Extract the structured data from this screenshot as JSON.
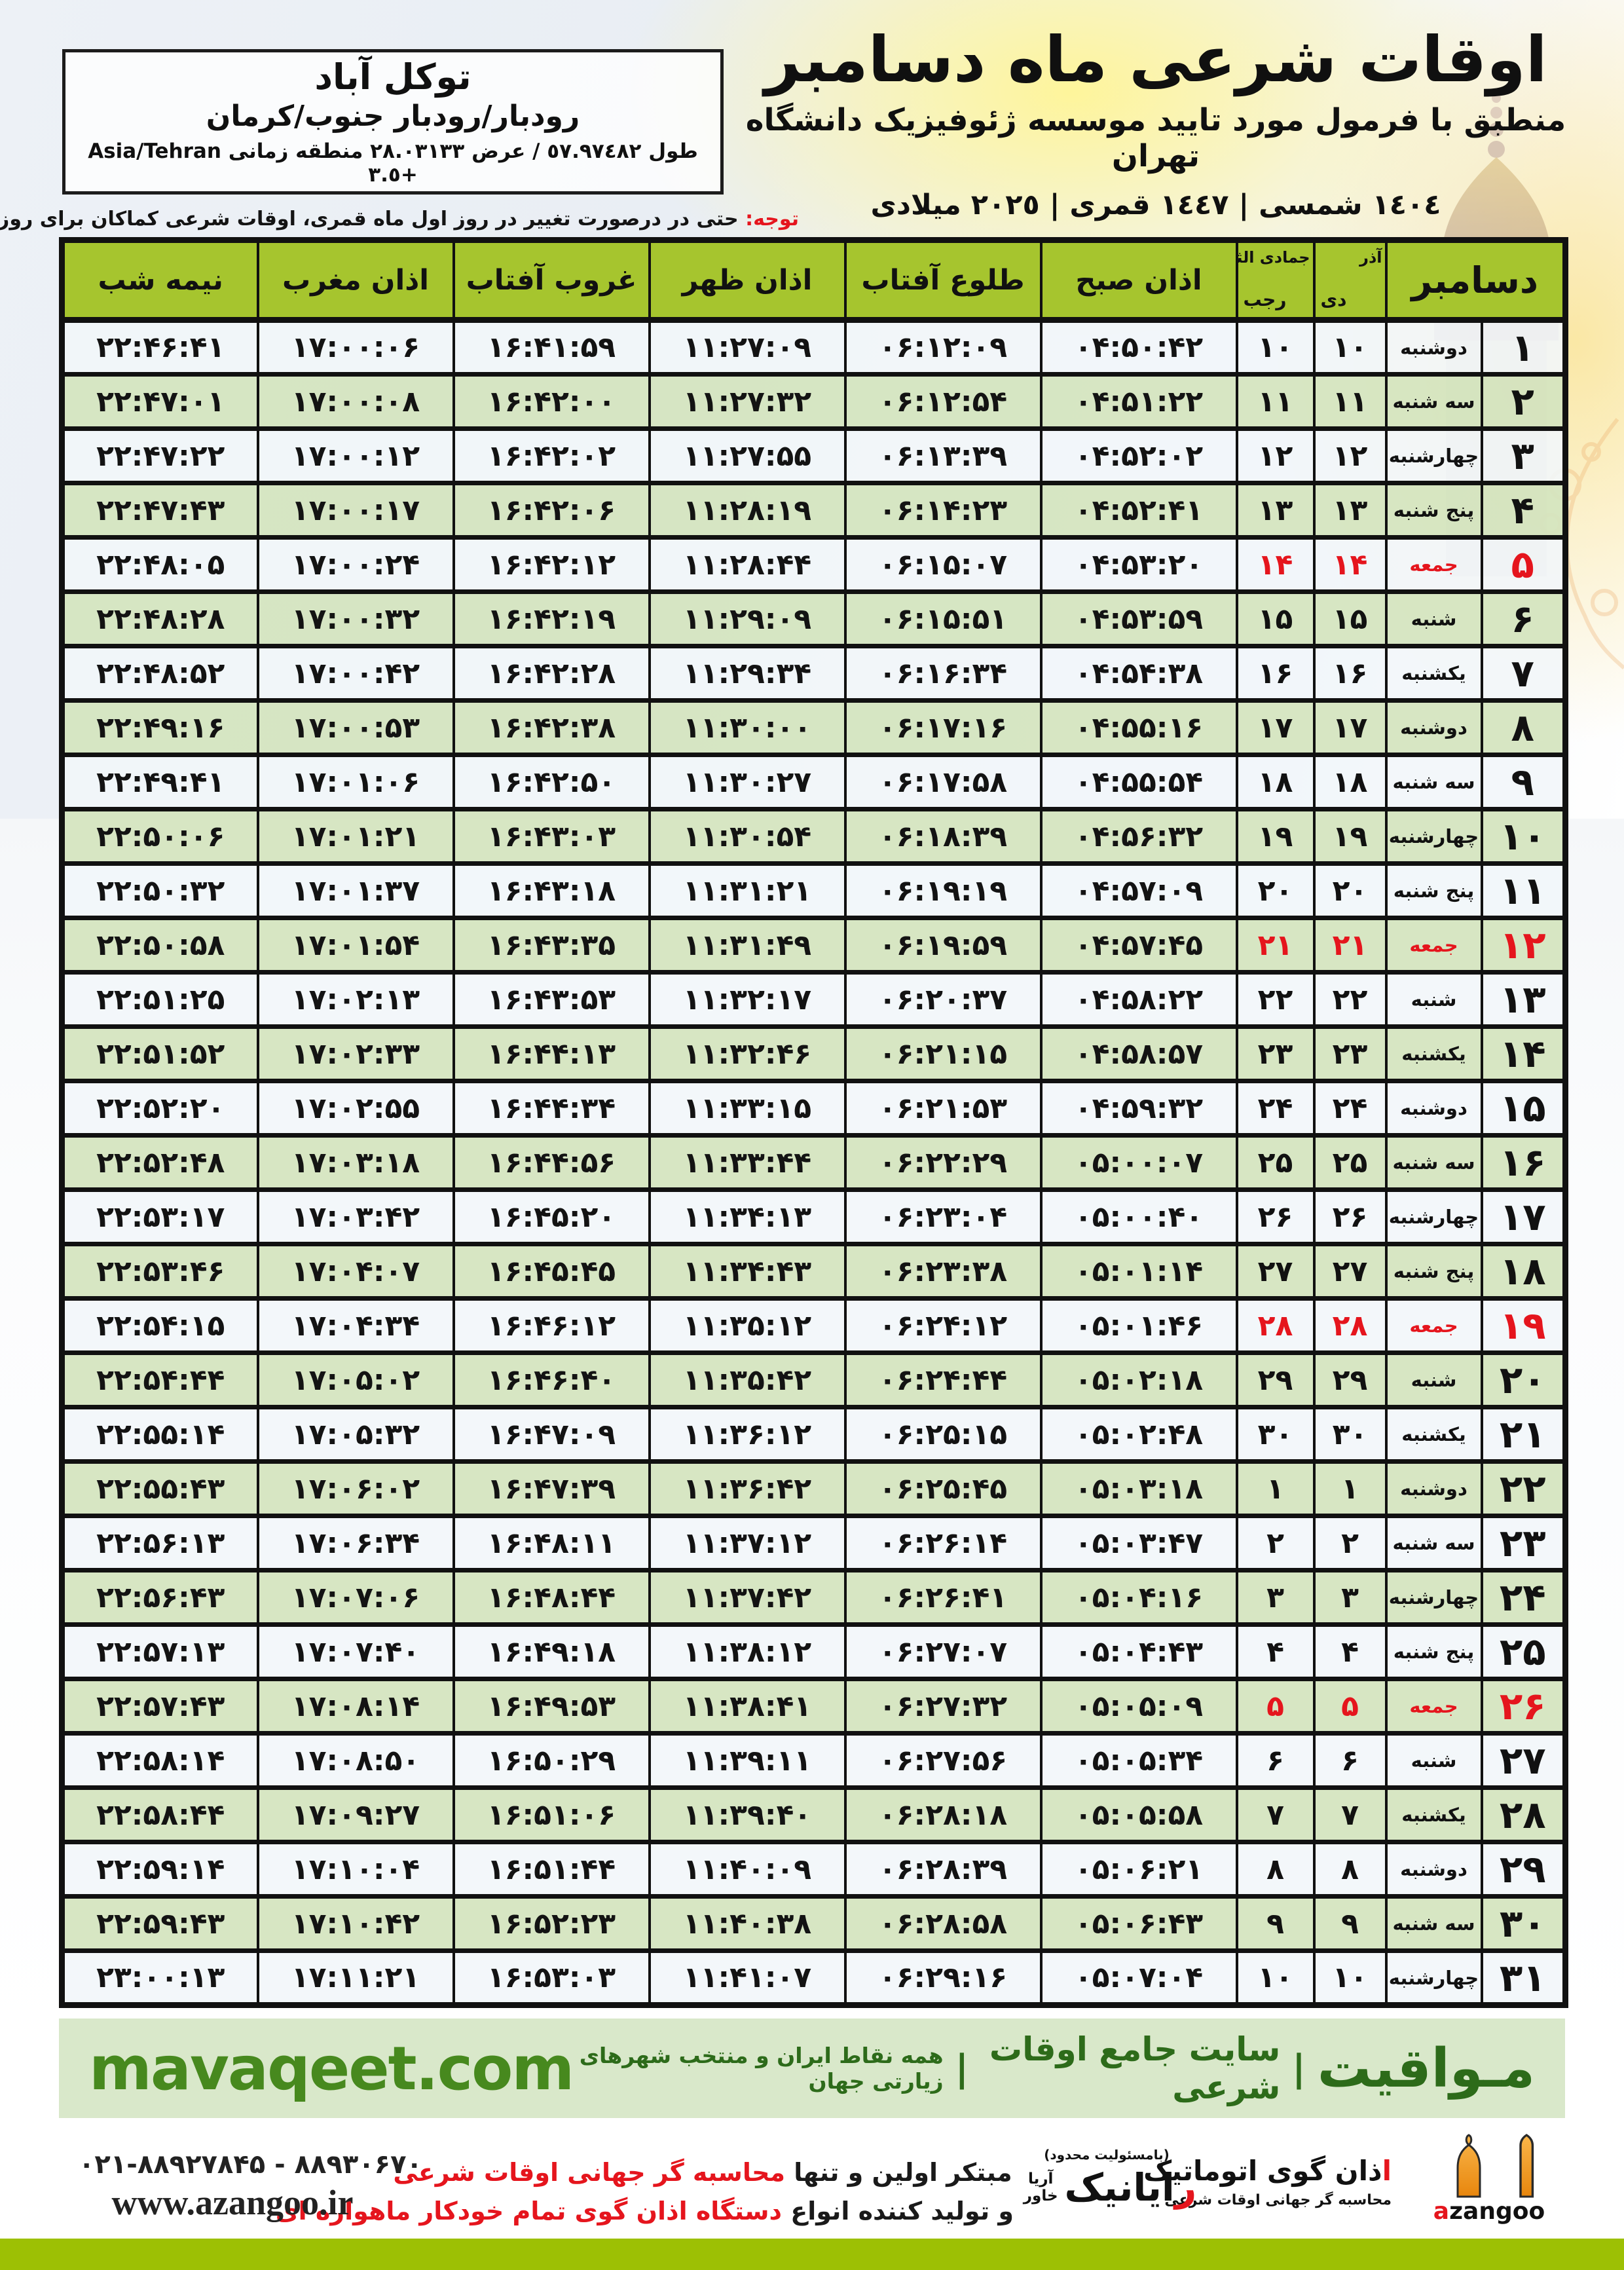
{
  "header": {
    "title": "اوقات شرعی ماه دسامبر",
    "subtitle": "منطبق با فرمول مورد تایید موسسه ژئوفیزیک دانشگاه تهران",
    "years": "١٤٠٤ شمسی | ١٤٤٧ قمری | ٢٠٢٥ میلادی"
  },
  "location_box": {
    "city": "توکل آباد",
    "region": "رودبار/رودبار جنوب/کرمان",
    "coords": "طول ٥٧.٩٧٤٨٢ / عرض ٢٨.٠٣١٣٣ منطقه زمانی Asia/Tehran +٣.٥"
  },
  "notice": {
    "label": "توجه:",
    "text": " حتی در درصورت تغییر در روز اول ماه قمری، اوقات شرعی کماکان برای روزهای شمسی و میلادی معتبر است."
  },
  "table": {
    "headers": {
      "december": "دسامبر",
      "persian_month_top": "آذر",
      "persian_month_bottom": "دی",
      "lunar_month_top": "جمادی الثانی",
      "lunar_month_bottom": "رجب",
      "azan_sobh": "اذان صبح",
      "tolu_aftab": "طلوع آفتاب",
      "azan_zohr": "اذان ظهر",
      "ghorub_aftab": "غروب آفتاب",
      "azan_maghreb": "اذان مغرب",
      "nime_shab": "نیمه شب"
    },
    "rows": [
      {
        "d": "۱",
        "w": "دوشنبه",
        "p": "۱۰",
        "q": "۱۰",
        "sobh": "۰۴:۵۰:۴۲",
        "tolu": "۰۶:۱۲:۰۹",
        "zohr": "۱۱:۲۷:۰۹",
        "ghorub": "۱۶:۴۱:۵۹",
        "maghreb": "۱۷:۰۰:۰۶",
        "nime": "۲۲:۴۶:۴۱",
        "f": false
      },
      {
        "d": "۲",
        "w": "سه شنبه",
        "p": "۱۱",
        "q": "۱۱",
        "sobh": "۰۴:۵۱:۲۲",
        "tolu": "۰۶:۱۲:۵۴",
        "zohr": "۱۱:۲۷:۳۲",
        "ghorub": "۱۶:۴۲:۰۰",
        "maghreb": "۱۷:۰۰:۰۸",
        "nime": "۲۲:۴۷:۰۱",
        "f": false
      },
      {
        "d": "۳",
        "w": "چهارشنبه",
        "p": "۱۲",
        "q": "۱۲",
        "sobh": "۰۴:۵۲:۰۲",
        "tolu": "۰۶:۱۳:۳۹",
        "zohr": "۱۱:۲۷:۵۵",
        "ghorub": "۱۶:۴۲:۰۲",
        "maghreb": "۱۷:۰۰:۱۲",
        "nime": "۲۲:۴۷:۲۲",
        "f": false
      },
      {
        "d": "۴",
        "w": "پنج شنبه",
        "p": "۱۳",
        "q": "۱۳",
        "sobh": "۰۴:۵۲:۴۱",
        "tolu": "۰۶:۱۴:۲۳",
        "zohr": "۱۱:۲۸:۱۹",
        "ghorub": "۱۶:۴۲:۰۶",
        "maghreb": "۱۷:۰۰:۱۷",
        "nime": "۲۲:۴۷:۴۳",
        "f": false
      },
      {
        "d": "۵",
        "w": "جمعه",
        "p": "۱۴",
        "q": "۱۴",
        "sobh": "۰۴:۵۳:۲۰",
        "tolu": "۰۶:۱۵:۰۷",
        "zohr": "۱۱:۲۸:۴۴",
        "ghorub": "۱۶:۴۲:۱۲",
        "maghreb": "۱۷:۰۰:۲۴",
        "nime": "۲۲:۴۸:۰۵",
        "f": true
      },
      {
        "d": "۶",
        "w": "شنبه",
        "p": "۱۵",
        "q": "۱۵",
        "sobh": "۰۴:۵۳:۵۹",
        "tolu": "۰۶:۱۵:۵۱",
        "zohr": "۱۱:۲۹:۰۹",
        "ghorub": "۱۶:۴۲:۱۹",
        "maghreb": "۱۷:۰۰:۳۲",
        "nime": "۲۲:۴۸:۲۸",
        "f": false
      },
      {
        "d": "۷",
        "w": "یکشنبه",
        "p": "۱۶",
        "q": "۱۶",
        "sobh": "۰۴:۵۴:۳۸",
        "tolu": "۰۶:۱۶:۳۴",
        "zohr": "۱۱:۲۹:۳۴",
        "ghorub": "۱۶:۴۲:۲۸",
        "maghreb": "۱۷:۰۰:۴۲",
        "nime": "۲۲:۴۸:۵۲",
        "f": false
      },
      {
        "d": "۸",
        "w": "دوشنبه",
        "p": "۱۷",
        "q": "۱۷",
        "sobh": "۰۴:۵۵:۱۶",
        "tolu": "۰۶:۱۷:۱۶",
        "zohr": "۱۱:۳۰:۰۰",
        "ghorub": "۱۶:۴۲:۳۸",
        "maghreb": "۱۷:۰۰:۵۳",
        "nime": "۲۲:۴۹:۱۶",
        "f": false
      },
      {
        "d": "۹",
        "w": "سه شنبه",
        "p": "۱۸",
        "q": "۱۸",
        "sobh": "۰۴:۵۵:۵۴",
        "tolu": "۰۶:۱۷:۵۸",
        "zohr": "۱۱:۳۰:۲۷",
        "ghorub": "۱۶:۴۲:۵۰",
        "maghreb": "۱۷:۰۱:۰۶",
        "nime": "۲۲:۴۹:۴۱",
        "f": false
      },
      {
        "d": "۱۰",
        "w": "چهارشنبه",
        "p": "۱۹",
        "q": "۱۹",
        "sobh": "۰۴:۵۶:۳۲",
        "tolu": "۰۶:۱۸:۳۹",
        "zohr": "۱۱:۳۰:۵۴",
        "ghorub": "۱۶:۴۳:۰۳",
        "maghreb": "۱۷:۰۱:۲۱",
        "nime": "۲۲:۵۰:۰۶",
        "f": false
      },
      {
        "d": "۱۱",
        "w": "پنج شنبه",
        "p": "۲۰",
        "q": "۲۰",
        "sobh": "۰۴:۵۷:۰۹",
        "tolu": "۰۶:۱۹:۱۹",
        "zohr": "۱۱:۳۱:۲۱",
        "ghorub": "۱۶:۴۳:۱۸",
        "maghreb": "۱۷:۰۱:۳۷",
        "nime": "۲۲:۵۰:۳۲",
        "f": false
      },
      {
        "d": "۱۲",
        "w": "جمعه",
        "p": "۲۱",
        "q": "۲۱",
        "sobh": "۰۴:۵۷:۴۵",
        "tolu": "۰۶:۱۹:۵۹",
        "zohr": "۱۱:۳۱:۴۹",
        "ghorub": "۱۶:۴۳:۳۵",
        "maghreb": "۱۷:۰۱:۵۴",
        "nime": "۲۲:۵۰:۵۸",
        "f": true
      },
      {
        "d": "۱۳",
        "w": "شنبه",
        "p": "۲۲",
        "q": "۲۲",
        "sobh": "۰۴:۵۸:۲۲",
        "tolu": "۰۶:۲۰:۳۷",
        "zohr": "۱۱:۳۲:۱۷",
        "ghorub": "۱۶:۴۳:۵۳",
        "maghreb": "۱۷:۰۲:۱۳",
        "nime": "۲۲:۵۱:۲۵",
        "f": false
      },
      {
        "d": "۱۴",
        "w": "یکشنبه",
        "p": "۲۳",
        "q": "۲۳",
        "sobh": "۰۴:۵۸:۵۷",
        "tolu": "۰۶:۲۱:۱۵",
        "zohr": "۱۱:۳۲:۴۶",
        "ghorub": "۱۶:۴۴:۱۳",
        "maghreb": "۱۷:۰۲:۳۳",
        "nime": "۲۲:۵۱:۵۲",
        "f": false
      },
      {
        "d": "۱۵",
        "w": "دوشنبه",
        "p": "۲۴",
        "q": "۲۴",
        "sobh": "۰۴:۵۹:۳۲",
        "tolu": "۰۶:۲۱:۵۳",
        "zohr": "۱۱:۳۳:۱۵",
        "ghorub": "۱۶:۴۴:۳۴",
        "maghreb": "۱۷:۰۲:۵۵",
        "nime": "۲۲:۵۲:۲۰",
        "f": false
      },
      {
        "d": "۱۶",
        "w": "سه شنبه",
        "p": "۲۵",
        "q": "۲۵",
        "sobh": "۰۵:۰۰:۰۷",
        "tolu": "۰۶:۲۲:۲۹",
        "zohr": "۱۱:۳۳:۴۴",
        "ghorub": "۱۶:۴۴:۵۶",
        "maghreb": "۱۷:۰۳:۱۸",
        "nime": "۲۲:۵۲:۴۸",
        "f": false
      },
      {
        "d": "۱۷",
        "w": "چهارشنبه",
        "p": "۲۶",
        "q": "۲۶",
        "sobh": "۰۵:۰۰:۴۰",
        "tolu": "۰۶:۲۳:۰۴",
        "zohr": "۱۱:۳۴:۱۳",
        "ghorub": "۱۶:۴۵:۲۰",
        "maghreb": "۱۷:۰۳:۴۲",
        "nime": "۲۲:۵۳:۱۷",
        "f": false
      },
      {
        "d": "۱۸",
        "w": "پنج شنبه",
        "p": "۲۷",
        "q": "۲۷",
        "sobh": "۰۵:۰۱:۱۴",
        "tolu": "۰۶:۲۳:۳۸",
        "zohr": "۱۱:۳۴:۴۳",
        "ghorub": "۱۶:۴۵:۴۵",
        "maghreb": "۱۷:۰۴:۰۷",
        "nime": "۲۲:۵۳:۴۶",
        "f": false
      },
      {
        "d": "۱۹",
        "w": "جمعه",
        "p": "۲۸",
        "q": "۲۸",
        "sobh": "۰۵:۰۱:۴۶",
        "tolu": "۰۶:۲۴:۱۲",
        "zohr": "۱۱:۳۵:۱۲",
        "ghorub": "۱۶:۴۶:۱۲",
        "maghreb": "۱۷:۰۴:۳۴",
        "nime": "۲۲:۵۴:۱۵",
        "f": true
      },
      {
        "d": "۲۰",
        "w": "شنبه",
        "p": "۲۹",
        "q": "۲۹",
        "sobh": "۰۵:۰۲:۱۸",
        "tolu": "۰۶:۲۴:۴۴",
        "zohr": "۱۱:۳۵:۴۲",
        "ghorub": "۱۶:۴۶:۴۰",
        "maghreb": "۱۷:۰۵:۰۲",
        "nime": "۲۲:۵۴:۴۴",
        "f": false
      },
      {
        "d": "۲۱",
        "w": "یکشنبه",
        "p": "۳۰",
        "q": "۳۰",
        "sobh": "۰۵:۰۲:۴۸",
        "tolu": "۰۶:۲۵:۱۵",
        "zohr": "۱۱:۳۶:۱۲",
        "ghorub": "۱۶:۴۷:۰۹",
        "maghreb": "۱۷:۰۵:۳۲",
        "nime": "۲۲:۵۵:۱۴",
        "f": false
      },
      {
        "d": "۲۲",
        "w": "دوشنبه",
        "p": "۱",
        "q": "۱",
        "sobh": "۰۵:۰۳:۱۸",
        "tolu": "۰۶:۲۵:۴۵",
        "zohr": "۱۱:۳۶:۴۲",
        "ghorub": "۱۶:۴۷:۳۹",
        "maghreb": "۱۷:۰۶:۰۲",
        "nime": "۲۲:۵۵:۴۳",
        "f": false
      },
      {
        "d": "۲۳",
        "w": "سه شنبه",
        "p": "۲",
        "q": "۲",
        "sobh": "۰۵:۰۳:۴۷",
        "tolu": "۰۶:۲۶:۱۴",
        "zohr": "۱۱:۳۷:۱۲",
        "ghorub": "۱۶:۴۸:۱۱",
        "maghreb": "۱۷:۰۶:۳۴",
        "nime": "۲۲:۵۶:۱۳",
        "f": false
      },
      {
        "d": "۲۴",
        "w": "چهارشنبه",
        "p": "۳",
        "q": "۳",
        "sobh": "۰۵:۰۴:۱۶",
        "tolu": "۰۶:۲۶:۴۱",
        "zohr": "۱۱:۳۷:۴۲",
        "ghorub": "۱۶:۴۸:۴۴",
        "maghreb": "۱۷:۰۷:۰۶",
        "nime": "۲۲:۵۶:۴۳",
        "f": false
      },
      {
        "d": "۲۵",
        "w": "پنج شنبه",
        "p": "۴",
        "q": "۴",
        "sobh": "۰۵:۰۴:۴۳",
        "tolu": "۰۶:۲۷:۰۷",
        "zohr": "۱۱:۳۸:۱۲",
        "ghorub": "۱۶:۴۹:۱۸",
        "maghreb": "۱۷:۰۷:۴۰",
        "nime": "۲۲:۵۷:۱۳",
        "f": false
      },
      {
        "d": "۲۶",
        "w": "جمعه",
        "p": "۵",
        "q": "۵",
        "sobh": "۰۵:۰۵:۰۹",
        "tolu": "۰۶:۲۷:۳۲",
        "zohr": "۱۱:۳۸:۴۱",
        "ghorub": "۱۶:۴۹:۵۳",
        "maghreb": "۱۷:۰۸:۱۴",
        "nime": "۲۲:۵۷:۴۳",
        "f": true
      },
      {
        "d": "۲۷",
        "w": "شنبه",
        "p": "۶",
        "q": "۶",
        "sobh": "۰۵:۰۵:۳۴",
        "tolu": "۰۶:۲۷:۵۶",
        "zohr": "۱۱:۳۹:۱۱",
        "ghorub": "۱۶:۵۰:۲۹",
        "maghreb": "۱۷:۰۸:۵۰",
        "nime": "۲۲:۵۸:۱۴",
        "f": false
      },
      {
        "d": "۲۸",
        "w": "یکشنبه",
        "p": "۷",
        "q": "۷",
        "sobh": "۰۵:۰۵:۵۸",
        "tolu": "۰۶:۲۸:۱۸",
        "zohr": "۱۱:۳۹:۴۰",
        "ghorub": "۱۶:۵۱:۰۶",
        "maghreb": "۱۷:۰۹:۲۷",
        "nime": "۲۲:۵۸:۴۴",
        "f": false
      },
      {
        "d": "۲۹",
        "w": "دوشنبه",
        "p": "۸",
        "q": "۸",
        "sobh": "۰۵:۰۶:۲۱",
        "tolu": "۰۶:۲۸:۳۹",
        "zohr": "۱۱:۴۰:۰۹",
        "ghorub": "۱۶:۵۱:۴۴",
        "maghreb": "۱۷:۱۰:۰۴",
        "nime": "۲۲:۵۹:۱۴",
        "f": false
      },
      {
        "d": "۳۰",
        "w": "سه شنبه",
        "p": "۹",
        "q": "۹",
        "sobh": "۰۵:۰۶:۴۳",
        "tolu": "۰۶:۲۸:۵۸",
        "zohr": "۱۱:۴۰:۳۸",
        "ghorub": "۱۶:۵۲:۲۳",
        "maghreb": "۱۷:۱۰:۴۲",
        "nime": "۲۲:۵۹:۴۳",
        "f": false
      },
      {
        "d": "۳۱",
        "w": "چهارشنبه",
        "p": "۱۰",
        "q": "۱۰",
        "sobh": "۰۵:۰۷:۰۴",
        "tolu": "۰۶:۲۹:۱۶",
        "zohr": "۱۱:۴۱:۰۷",
        "ghorub": "۱۶:۵۳:۰۳",
        "maghreb": "۱۷:۱۱:۲۱",
        "nime": "۲۳:۰۰:۱۳",
        "f": false
      }
    ]
  },
  "mavaqeet_band": {
    "brand_fa": "مـواقیت",
    "sep": "|",
    "tagline1": "سایت جامع اوقات شرعی",
    "tagline2": "همه نقاط ایران و منتخب شهرهای زیارتی جهان",
    "site_en": "mavaqeet.com"
  },
  "bottom": {
    "azangoo": {
      "latin_red": "a",
      "latin_rest": "zangoo",
      "fa_title_red": "ا",
      "fa_title_rest": "ذان گوی اتوماتیک",
      "fa_sub": "محاسبه گر جهانی اوقات شرعی"
    },
    "rayanik": {
      "note": "(بامسئولیت محدود)",
      "name_red": "ر",
      "name_rest": "ایانیک",
      "sub_line1": "خاور",
      "sub_line2": "آریا"
    },
    "promo": {
      "line1_black": "مبتکر اولین و تنها ",
      "line1_red": "محاسبه گر جهانی اوقات شرعی",
      "line2_black": "و تولید کننده انواع ",
      "line2_red": "دستگاه اذان گوی تمام خودکار ماهواره ای"
    },
    "contact": {
      "phone": "۰۲۱-۸۸۹۲۷۸۴۵ - ۸۸۹۳۰۶۷۰",
      "website": "www.azangoo.ir"
    }
  },
  "colors": {
    "header_green": "#a6c52e",
    "row_green": "#d5e4bf",
    "row_white": "#f2f6fa",
    "band_green": "#d9e8ca",
    "bar_green": "#9dc004",
    "dark_green": "#2d6b1a",
    "site_green": "#47891e",
    "accent_red": "#e5151d"
  }
}
